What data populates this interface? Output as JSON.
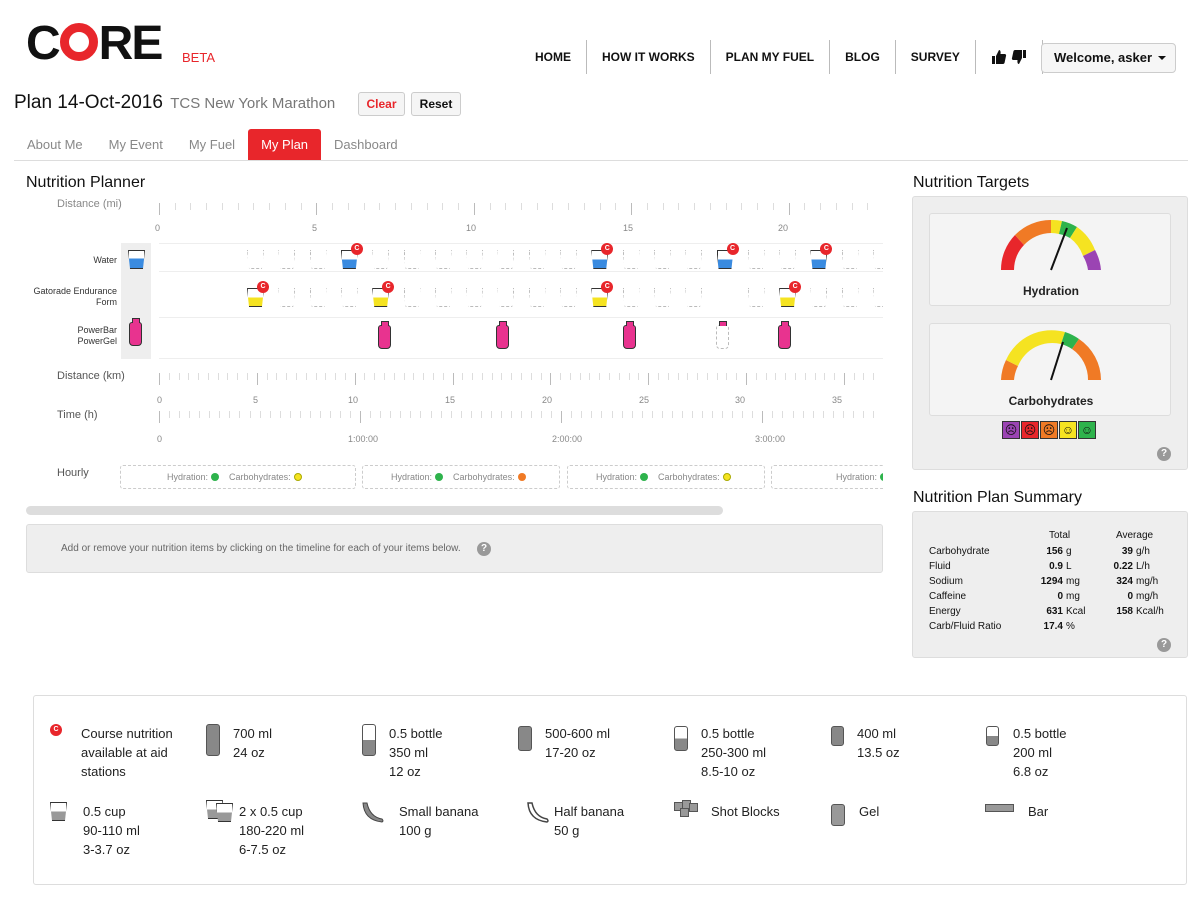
{
  "brand": {
    "logo_c": "C",
    "logo_re": "RE",
    "beta": "BETA"
  },
  "nav": {
    "items": [
      "HOME",
      "HOW IT WORKS",
      "PLAN MY FUEL",
      "BLOG",
      "SURVEY"
    ],
    "welcome": "Welcome, asker"
  },
  "plan": {
    "title": "Plan 14-Oct-2016",
    "event": "TCS New York Marathon",
    "clear": "Clear",
    "reset": "Reset"
  },
  "tabs": [
    "About Me",
    "My Event",
    "My Fuel",
    "My Plan",
    "Dashboard"
  ],
  "planner": {
    "title": "Nutrition Planner",
    "distance_mi_label": "Distance (mi)",
    "mi_ticks": [
      "0",
      "5",
      "10",
      "15",
      "20"
    ],
    "rows": {
      "water": "Water",
      "gatorade": "Gatorade Endurance Form",
      "gel": "PowerBar PowerGel"
    },
    "distance_km_label": "Distance (km)",
    "km_ticks": [
      "0",
      "5",
      "10",
      "15",
      "20",
      "25",
      "30",
      "35"
    ],
    "time_label": "Time (h)",
    "time_ticks": [
      "0",
      "1:00:00",
      "2:00:00",
      "3:00:00"
    ],
    "hourly_label": "Hourly",
    "hourly": [
      {
        "hydration": "Hydration:",
        "carbs": "Carbohydrates:",
        "hcolor": "#2eb34c",
        "ccolor": "#f5e321"
      },
      {
        "hydration": "Hydration:",
        "carbs": "Carbohydrates:",
        "hcolor": "#2eb34c",
        "ccolor": "#f07a25"
      },
      {
        "hydration": "Hydration:",
        "carbs": "Carbohydrates:",
        "hcolor": "#2eb34c",
        "ccolor": "#f5e321"
      },
      {
        "hydration": "Hydration:",
        "carbs": "",
        "hcolor": "#2eb34c",
        "ccolor": ""
      }
    ],
    "hint": "Add or remove your nutrition items by clicking on the timeline for each of your items below.",
    "badge": "C"
  },
  "targets": {
    "title": "Nutrition Targets",
    "hydration": "Hydration",
    "carbs": "Carbohydrates"
  },
  "summary": {
    "title": "Nutrition Plan Summary",
    "col_total": "Total",
    "col_average": "Average",
    "rows": [
      {
        "name": "Carbohydrate",
        "total": "156",
        "tunit": "g",
        "avg": "39",
        "aunit": "g/h"
      },
      {
        "name": "Fluid",
        "total": "0.9",
        "tunit": "L",
        "avg": "0.22",
        "aunit": "L/h"
      },
      {
        "name": "Sodium",
        "total": "1294",
        "tunit": "mg",
        "avg": "324",
        "aunit": "mg/h"
      },
      {
        "name": "Caffeine",
        "total": "0",
        "tunit": "mg",
        "avg": "0",
        "aunit": "mg/h"
      },
      {
        "name": "Energy",
        "total": "631",
        "tunit": "Kcal",
        "avg": "158",
        "aunit": "Kcal/h"
      },
      {
        "name": "Carb/Fluid Ratio",
        "total": "17.4",
        "tunit": "%",
        "avg": "",
        "aunit": ""
      }
    ]
  },
  "legend": {
    "course": [
      "Course nutrition",
      "available at aid",
      "stations"
    ],
    "b700": [
      "700 ml",
      "24 oz"
    ],
    "b05a": [
      "0.5 bottle",
      "350 ml",
      "12 oz"
    ],
    "b500": [
      "500-600 ml",
      "17-20 oz"
    ],
    "b05b": [
      "0.5 bottle",
      "250-300 ml",
      "8.5-10 oz"
    ],
    "b400": [
      "400 ml",
      "13.5 oz"
    ],
    "b05c": [
      "0.5 bottle",
      "200 ml",
      "6.8 oz"
    ],
    "cup": [
      "0.5 cup",
      "90-110 ml",
      "3-3.7 oz"
    ],
    "cup2": [
      "2 x 0.5 cup",
      "180-220 ml",
      "6-7.5 oz"
    ],
    "banana": [
      "Small banana",
      "100 g"
    ],
    "halfbanana": [
      "Half banana",
      "50 g"
    ],
    "shot": [
      "Shot Blocks"
    ],
    "gel": [
      "Gel"
    ],
    "bar": [
      "Bar"
    ]
  }
}
